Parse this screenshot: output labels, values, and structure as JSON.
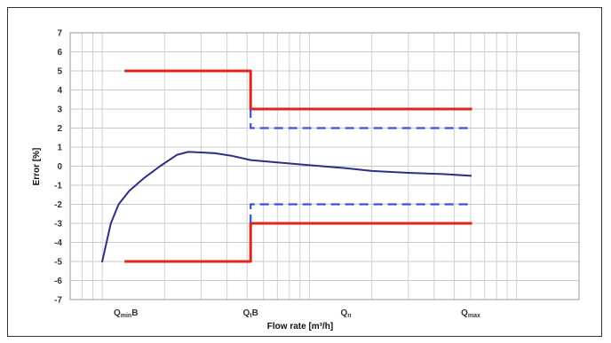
{
  "chart_data": {
    "type": "line",
    "xlabel": "Flow rate [m³/h]",
    "ylabel": "Error [%]",
    "x_scale": "log",
    "ylim": [
      -7,
      7
    ],
    "y_ticks": [
      7,
      6,
      5,
      4,
      3,
      2,
      1,
      0,
      -1,
      -2,
      -3,
      -4,
      -5,
      -6,
      -7
    ],
    "grid": true,
    "x_tick_labels": [
      {
        "base": "Q",
        "sub": "min",
        "suffix": "B"
      },
      {
        "base": "Q",
        "sub": "t",
        "suffix": "B"
      },
      {
        "base": "Q",
        "sub": "n",
        "suffix": ""
      },
      {
        "base": "Q",
        "sub": "max",
        "suffix": ""
      }
    ],
    "series": [
      {
        "color": "#2b2f86",
        "style": "solid",
        "points": [
          {
            "x": 1.0,
            "y": -5.0
          },
          {
            "x": 1.1,
            "y": -3.0
          },
          {
            "x": 1.2,
            "y": -2.0
          },
          {
            "x": 1.35,
            "y": -1.3
          },
          {
            "x": 1.6,
            "y": -0.6
          },
          {
            "x": 1.9,
            "y": 0.0
          },
          {
            "x": 2.3,
            "y": 0.6
          },
          {
            "x": 2.6,
            "y": 0.75
          },
          {
            "x": 3.0,
            "y": 0.72
          },
          {
            "x": 3.5,
            "y": 0.68
          },
          {
            "x": 4.2,
            "y": 0.55
          },
          {
            "x": 5.2,
            "y": 0.32
          },
          {
            "x": 7.0,
            "y": 0.2
          },
          {
            "x": 10.0,
            "y": 0.05
          },
          {
            "x": 15.0,
            "y": -0.1
          },
          {
            "x": 20.0,
            "y": -0.25
          },
          {
            "x": 30.0,
            "y": -0.35
          },
          {
            "x": 45.0,
            "y": -0.42
          },
          {
            "x": 60.0,
            "y": -0.5
          }
        ]
      },
      {
        "color": "#e3241b",
        "style": "solid",
        "points": [
          {
            "x": 1.3,
            "y": 5
          },
          {
            "x": 5.2,
            "y": 5
          },
          {
            "x": 5.2,
            "y": 3
          },
          {
            "x": 60.0,
            "y": 3
          }
        ]
      },
      {
        "color": "#e3241b",
        "style": "solid",
        "points": [
          {
            "x": 1.3,
            "y": -5
          },
          {
            "x": 5.2,
            "y": -5
          },
          {
            "x": 5.2,
            "y": -3
          },
          {
            "x": 60.0,
            "y": -3
          }
        ]
      },
      {
        "color": "#3b4ee8",
        "style": "dashed",
        "points": [
          {
            "x": 5.2,
            "y": 3
          },
          {
            "x": 5.2,
            "y": 2
          },
          {
            "x": 60.0,
            "y": 2
          }
        ]
      },
      {
        "color": "#3b4ee8",
        "style": "dashed",
        "points": [
          {
            "x": 5.2,
            "y": -3
          },
          {
            "x": 5.2,
            "y": -2
          },
          {
            "x": 60.0,
            "y": -2
          }
        ]
      }
    ]
  }
}
